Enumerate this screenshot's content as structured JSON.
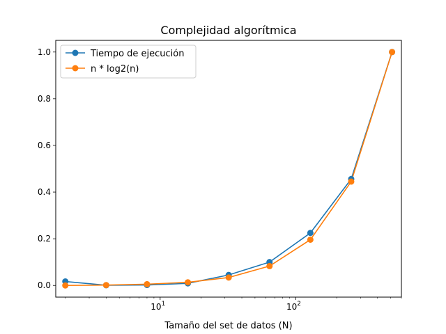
{
  "chart_data": {
    "type": "line",
    "title": "Complejidad algorítmica",
    "xlabel": "Tamaño del set de datos (N)",
    "ylabel": "",
    "xscale": "log",
    "xlim": [
      1.7,
      600
    ],
    "ylim": [
      -0.05,
      1.05
    ],
    "x": [
      2,
      4,
      8,
      16,
      32,
      64,
      128,
      256,
      512
    ],
    "yticks": [
      0.0,
      0.2,
      0.4,
      0.6,
      0.8,
      1.0
    ],
    "ytick_labels": [
      "0.0",
      "0.2",
      "0.4",
      "0.6",
      "0.8",
      "1.0"
    ],
    "xticks_major": [
      10,
      100
    ],
    "xtick_labels": [
      {
        "base": "10",
        "exp": "1"
      },
      {
        "base": "10",
        "exp": "2"
      }
    ],
    "grid": false,
    "legend_position": "upper-left",
    "series": [
      {
        "name": "Tiempo de ejecución",
        "color": "#1f77b4",
        "values": [
          0.017,
          0.001,
          0.002,
          0.009,
          0.045,
          0.1,
          0.225,
          0.456,
          1.0
        ]
      },
      {
        "name": "n * log2(n)",
        "color": "#ff7f0e",
        "values": [
          0.0,
          0.0015,
          0.0055,
          0.0135,
          0.034,
          0.083,
          0.196,
          0.445,
          1.0
        ]
      }
    ]
  }
}
